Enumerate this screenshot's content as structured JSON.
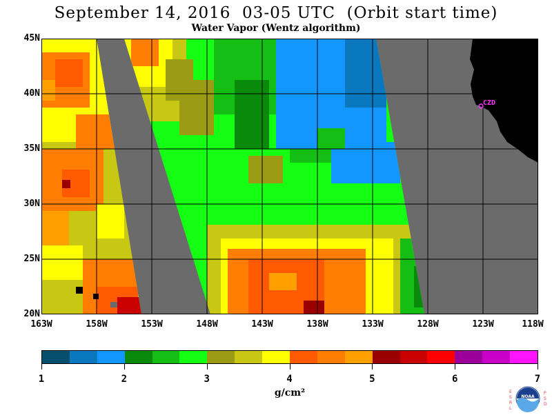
{
  "header": {
    "title": "September 14, 2016  03-05 UTC  (Orbit start time)",
    "subtitle": "Water Vapor (Wentz algorithm)"
  },
  "map": {
    "lat_labels": [
      "45N",
      "40N",
      "35N",
      "30N",
      "25N",
      "20N"
    ],
    "lon_labels": [
      "163W",
      "158W",
      "153W",
      "148W",
      "143W",
      "138W",
      "133W",
      "128W",
      "123W",
      "118W"
    ],
    "lat_range": [
      20,
      45
    ],
    "lon_range": [
      -163,
      -118
    ],
    "site_label": "CZD",
    "colors": {
      "no_data": "#6b6b6b",
      "land": "#000000",
      "grid": "#000000",
      "site": "#ff33ff"
    }
  },
  "colorbar": {
    "colors": [
      "#06506e",
      "#0a78bf",
      "#1496ff",
      "#0a8a0a",
      "#14be14",
      "#14ff14",
      "#9b9b14",
      "#c8c814",
      "#ffff00",
      "#ff5a00",
      "#ff7d00",
      "#ffa000",
      "#9b0000",
      "#c80000",
      "#ff0000",
      "#9b009b",
      "#c800c8",
      "#ff14ff"
    ],
    "labels": [
      "1",
      "2",
      "3",
      "4",
      "5",
      "6",
      "7"
    ],
    "units": "g/cm²",
    "range": [
      1,
      7
    ]
  },
  "logo": {
    "left_letters": "ESRL",
    "right_letters": "PSD",
    "center": "NOAA"
  }
}
